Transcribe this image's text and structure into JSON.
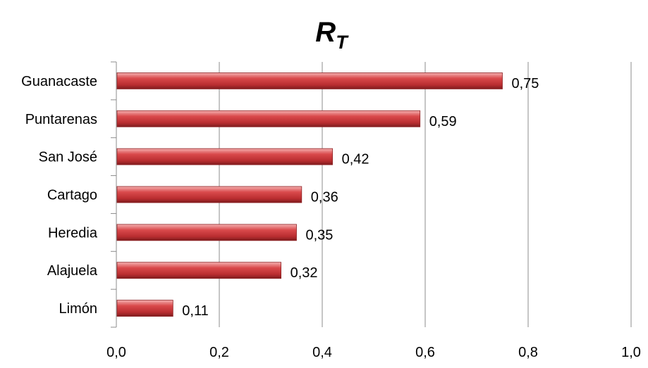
{
  "chart_data": {
    "type": "bar",
    "orientation": "horizontal",
    "title": "R",
    "title_subscript": "T",
    "categories": [
      "Guanacaste",
      "Puntarenas",
      "San José",
      "Cartago",
      "Heredia",
      "Alajuela",
      "Limón"
    ],
    "values": [
      0.75,
      0.59,
      0.42,
      0.36,
      0.35,
      0.32,
      0.11
    ],
    "data_labels": [
      "0,75",
      "0,59",
      "0,42",
      "0,36",
      "0,35",
      "0,32",
      "0,11"
    ],
    "xlim": [
      0,
      1.0
    ],
    "x_ticks": [
      "0,0",
      "0,2",
      "0,4",
      "0,6",
      "0,8",
      "1,0"
    ],
    "xlabel": "",
    "ylabel": "",
    "grid": "vertical",
    "bar_color": "#c0393b",
    "bar_highlight": "#f2a3a3",
    "grid_color": "#8c8c8c"
  }
}
